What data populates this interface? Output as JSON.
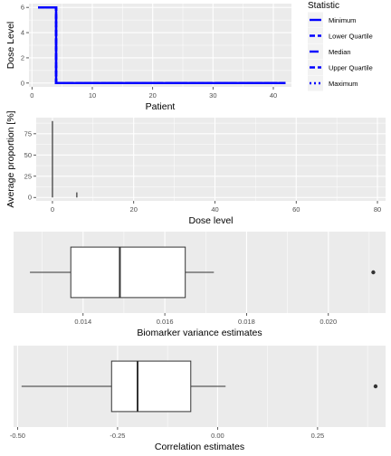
{
  "chart_data": [
    {
      "type": "line",
      "xlabel": "Patient",
      "ylabel": "Dose Level",
      "xlim": [
        -0.5,
        43
      ],
      "ylim": [
        -0.3,
        6.3
      ],
      "x_ticks": [
        0,
        10,
        20,
        30,
        40
      ],
      "y_ticks": [
        0,
        2,
        4,
        6
      ],
      "grid": true,
      "legend_position": "right",
      "legend_title": "Statistic",
      "series": [
        {
          "name": "Minimum",
          "dash": "solid",
          "color": "#0000ff",
          "x": [
            1,
            2,
            3,
            4,
            5,
            6,
            7,
            8,
            9,
            10,
            11,
            12,
            13,
            14,
            15,
            16,
            17,
            18,
            19,
            20,
            21,
            22,
            23,
            24,
            25,
            26,
            27,
            28,
            29,
            30,
            31,
            32,
            33,
            34,
            35,
            36,
            37,
            38,
            39,
            40,
            41,
            42
          ],
          "y": [
            6,
            6,
            6,
            0,
            0,
            0,
            0,
            0,
            0,
            0,
            0,
            0,
            0,
            0,
            0,
            0,
            0,
            0,
            0,
            0,
            0,
            0,
            0,
            0,
            0,
            0,
            0,
            0,
            0,
            0,
            0,
            0,
            0,
            0,
            0,
            0,
            0,
            0,
            0,
            0,
            0,
            0
          ]
        },
        {
          "name": "Lower Quartile",
          "dash": "dashed",
          "color": "#0000ff",
          "x": [
            1,
            2,
            3,
            4,
            5,
            6,
            7,
            8,
            9,
            10,
            11,
            12,
            13,
            14,
            15,
            16,
            17,
            18,
            19,
            20,
            21,
            22,
            23,
            24,
            25,
            26,
            27,
            28,
            29,
            30,
            31,
            32,
            33,
            34,
            35,
            36,
            37,
            38,
            39,
            40,
            41,
            42
          ],
          "y": [
            6,
            6,
            6,
            0,
            0,
            0,
            0,
            0,
            0,
            0,
            0,
            0,
            0,
            0,
            0,
            0,
            0,
            0,
            0,
            0,
            0,
            0,
            0,
            0,
            0,
            0,
            0,
            0,
            0,
            0,
            0,
            0,
            0,
            0,
            0,
            0,
            0,
            0,
            0,
            0,
            0,
            0
          ]
        },
        {
          "name": "Median",
          "dash": "longdash",
          "color": "#0000ff",
          "x": [
            1,
            2,
            3,
            4,
            5,
            6,
            7,
            8,
            9,
            10,
            11,
            12,
            13,
            14,
            15,
            16,
            17,
            18,
            19,
            20,
            21,
            22,
            23,
            24,
            25,
            26,
            27,
            28,
            29,
            30,
            31,
            32,
            33,
            34,
            35,
            36,
            37,
            38,
            39,
            40,
            41,
            42
          ],
          "y": [
            6,
            6,
            6,
            0,
            0,
            0,
            0,
            0,
            0,
            0,
            0,
            0,
            0,
            0,
            0,
            0,
            0,
            0,
            0,
            0,
            0,
            0,
            0,
            0,
            0,
            0,
            0,
            0,
            0,
            0,
            0,
            0,
            0,
            0,
            0,
            0,
            0,
            0,
            0,
            0,
            0,
            0
          ]
        },
        {
          "name": "Upper Quartile",
          "dash": "dashed",
          "color": "#0000ff",
          "x": [
            1,
            2,
            3,
            4,
            5,
            6,
            7,
            8,
            9,
            10,
            11,
            12,
            13,
            14,
            15,
            16,
            17,
            18,
            19,
            20,
            21,
            22,
            23,
            24,
            25,
            26,
            27,
            28,
            29,
            30,
            31,
            32,
            33,
            34,
            35,
            36,
            37,
            38,
            39,
            40,
            41,
            42
          ],
          "y": [
            6,
            6,
            6,
            0,
            0,
            0,
            0,
            0,
            0,
            0,
            0,
            0,
            0,
            0,
            0,
            0,
            0,
            0,
            0,
            0,
            0,
            0,
            0,
            0,
            0,
            0,
            0,
            0,
            0,
            0,
            0,
            0,
            0,
            0,
            0,
            0,
            0,
            0,
            0,
            0,
            0,
            0
          ]
        },
        {
          "name": "Maximum",
          "dash": "dotted",
          "color": "#0000ff",
          "x": [
            1,
            2,
            3,
            4,
            5,
            6,
            7,
            8,
            9,
            10,
            11,
            12,
            13,
            14,
            15,
            16,
            17,
            18,
            19,
            20,
            21,
            22,
            23,
            24,
            25,
            26,
            27,
            28,
            29,
            30,
            31,
            32,
            33,
            34,
            35,
            36,
            37,
            38,
            39,
            40,
            41,
            42
          ],
          "y": [
            6,
            6,
            6,
            0,
            0,
            0,
            0,
            0,
            0,
            0,
            0,
            0,
            0,
            0,
            0,
            0,
            0,
            0,
            0,
            0,
            0,
            0,
            0,
            0,
            0,
            0,
            0,
            0,
            0,
            0,
            0,
            0,
            0,
            0,
            0,
            0,
            0,
            0,
            0,
            0,
            0,
            0
          ]
        }
      ]
    },
    {
      "type": "bar",
      "xlabel": "Dose level",
      "ylabel": "Average proportion [%]",
      "xlim": [
        -4,
        82
      ],
      "ylim": [
        -4,
        94
      ],
      "x_ticks": [
        0,
        20,
        40,
        60,
        80
      ],
      "y_ticks": [
        0,
        25,
        50,
        75
      ],
      "grid": true,
      "bars": [
        {
          "x": 0,
          "value": 90
        },
        {
          "x": 6,
          "value": 6
        }
      ]
    },
    {
      "type": "boxplot",
      "xlabel": "Biomarker variance estimates",
      "xlim": [
        0.0123,
        0.0214
      ],
      "x_ticks": [
        0.014,
        0.016,
        0.018,
        0.02
      ],
      "x_tick_labels": [
        "0.014",
        "0.016",
        "0.018",
        "0.020"
      ],
      "grid": true,
      "box": {
        "whisker_low": 0.0127,
        "q1": 0.0137,
        "median": 0.0149,
        "q3": 0.0165,
        "whisker_high": 0.0172,
        "outliers": [
          0.0211
        ]
      }
    },
    {
      "type": "boxplot",
      "xlabel": "Correlation estimates",
      "xlim": [
        -0.51,
        0.42
      ],
      "x_ticks": [
        -0.5,
        -0.25,
        0,
        0.25
      ],
      "x_tick_labels": [
        "-0.50",
        "-0.25",
        "0.00",
        "0.25"
      ],
      "grid": true,
      "box": {
        "whisker_low": -0.49,
        "q1": -0.265,
        "median": -0.2,
        "q3": -0.067,
        "whisker_high": 0.02,
        "outliers": [
          0.395
        ]
      }
    }
  ]
}
